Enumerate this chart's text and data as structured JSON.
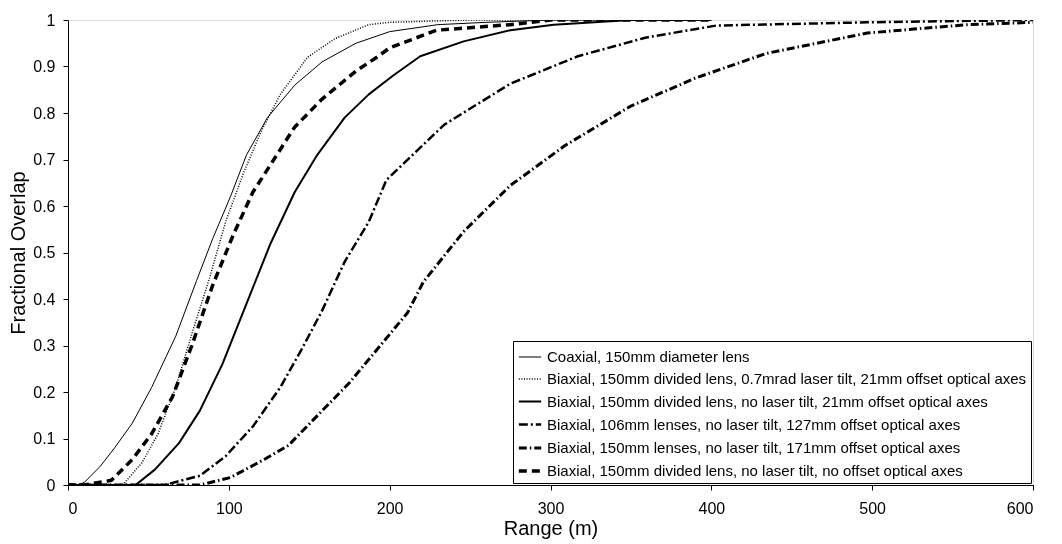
{
  "chart_data": {
    "type": "line",
    "xlabel": "Range (m)",
    "ylabel": "Fractional Overlap",
    "xlim": [
      0,
      600
    ],
    "ylim": [
      0,
      1
    ],
    "xticks": [
      0,
      100,
      200,
      300,
      400,
      500,
      600
    ],
    "yticks": [
      0,
      0.1,
      0.2,
      0.3,
      0.4,
      0.5,
      0.6,
      0.7,
      0.8,
      0.9,
      1
    ],
    "grid": false,
    "legend": "bottom right",
    "series": [
      {
        "name": "Coaxial, 150mm diameter lens",
        "color": "#000000",
        "line_style": "solid",
        "x": [
          0,
          5,
          10,
          20,
          29,
          40,
          52,
          67,
          80,
          90,
          101,
          111,
          124,
          141,
          158,
          179,
          200,
          230,
          260,
          300,
          400
        ],
        "values": [
          0,
          0,
          0.005,
          0.04,
          0.08,
          0.133,
          0.21,
          0.32,
          0.44,
          0.53,
          0.62,
          0.71,
          0.79,
          0.86,
          0.91,
          0.95,
          0.975,
          0.99,
          0.995,
          1,
          1
        ]
      },
      {
        "name": "Biaxial, 150mm divided lens, 0.7mrad laser tilt, 21mm offset optical axes",
        "color": "#000000",
        "line_style": "dotted",
        "x": [
          0,
          34,
          46,
          56,
          67,
          77,
          88,
          98,
          109,
          120,
          132,
          149,
          166,
          187,
          200,
          250,
          400
        ],
        "values": [
          0,
          0,
          0.048,
          0.11,
          0.21,
          0.325,
          0.445,
          0.566,
          0.67,
          0.76,
          0.84,
          0.92,
          0.96,
          0.99,
          0.995,
          1,
          1
        ]
      },
      {
        "name": "Biaxial, 150mm divided lens, no laser tilt, 21mm offset optical axes",
        "color": "#000000",
        "line_style": "solid",
        "x": [
          0,
          42,
          54,
          69,
          82,
          96,
          111,
          126,
          141,
          155,
          172,
          187,
          202,
          219,
          246,
          275,
          302,
          350,
          400
        ],
        "values": [
          0,
          0,
          0.033,
          0.09,
          0.16,
          0.26,
          0.39,
          0.52,
          0.63,
          0.71,
          0.79,
          0.84,
          0.88,
          0.922,
          0.954,
          0.978,
          0.99,
          1,
          1
        ]
      },
      {
        "name": "Biaxial, 106mm lenses, no laser tilt, 127mm offset optical axes",
        "color": "#000000",
        "line_style": "dashdot",
        "x": [
          0,
          60,
          82,
          98,
          115,
          132,
          145,
          158,
          172,
          187,
          198,
          234,
          275,
          317,
          359,
          403,
          497,
          600
        ],
        "values": [
          0,
          0,
          0.02,
          0.062,
          0.126,
          0.21,
          0.29,
          0.375,
          0.48,
          0.566,
          0.656,
          0.775,
          0.863,
          0.922,
          0.962,
          0.988,
          0.995,
          1
        ]
      },
      {
        "name": "Biaxial, 150mm lenses, no laser tilt, 171mm offset optical axes",
        "color": "#000000",
        "line_style": "dashdot",
        "x": [
          0,
          82,
          101,
          122,
          137,
          175,
          211,
          221,
          246,
          275,
          309,
          350,
          390,
          434,
          497,
          559,
          600
        ],
        "values": [
          0,
          0,
          0.016,
          0.055,
          0.085,
          0.22,
          0.37,
          0.437,
          0.545,
          0.644,
          0.73,
          0.815,
          0.875,
          0.928,
          0.972,
          0.99,
          0.995
        ]
      },
      {
        "name": "Biaxial, 150mm divided lens, no laser tilt, no offset optical axes",
        "color": "#000000",
        "line_style": "dashed",
        "x": [
          0,
          10,
          27,
          40,
          52,
          65,
          77,
          90,
          103,
          115,
          128,
          141,
          158,
          179,
          192,
          200,
          229,
          275,
          300,
          400
        ],
        "values": [
          0,
          0,
          0.01,
          0.055,
          0.11,
          0.19,
          0.3,
          0.43,
          0.54,
          0.63,
          0.7,
          0.77,
          0.83,
          0.89,
          0.92,
          0.94,
          0.978,
          0.99,
          1,
          1
        ]
      }
    ]
  }
}
